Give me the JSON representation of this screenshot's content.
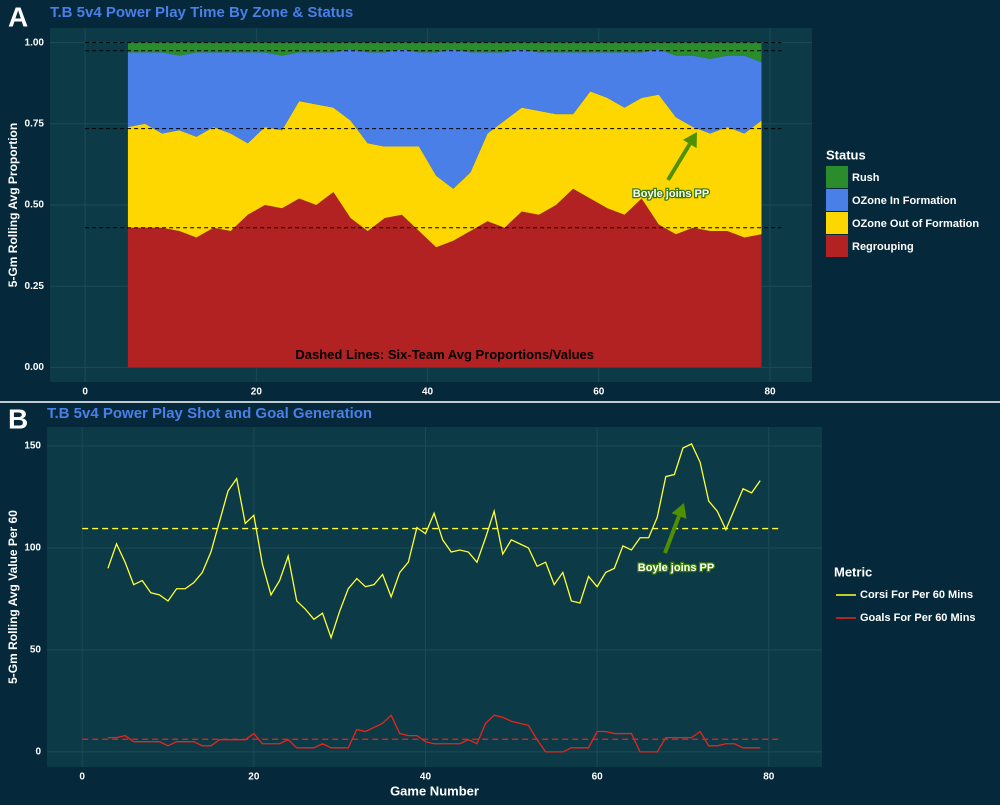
{
  "chart_data": [
    {
      "type": "area",
      "panel": "A",
      "title": "T.B  5v4 Power Play Time By Zone & Status",
      "ylabel": "5-Gm Rolling Avg Proportion",
      "legend_title": "Status",
      "note": "Dashed Lines: Six-Team Avg Proportions/Values",
      "annotation": "Boyle joins PP",
      "xlim": [
        -4.1,
        84.9
      ],
      "ylim": [
        -0.045,
        1.045
      ],
      "xticks": [
        0,
        20,
        40,
        60,
        80
      ],
      "yticks": [
        {
          "value": 0,
          "label": "0.00"
        },
        {
          "value": 0.25,
          "label": "0.25"
        },
        {
          "value": 0.5,
          "label": "0.50"
        },
        {
          "value": 0.75,
          "label": "0.75"
        },
        {
          "value": 1,
          "label": "1.00"
        }
      ],
      "grid": true,
      "x": [
        5,
        7,
        9,
        11,
        13,
        15,
        17,
        19,
        21,
        23,
        25,
        27,
        29,
        31,
        33,
        35,
        37,
        39,
        41,
        43,
        45,
        47,
        49,
        51,
        53,
        55,
        57,
        59,
        61,
        63,
        65,
        67,
        69,
        71,
        73,
        75,
        77,
        79
      ],
      "series": [
        {
          "name": "Rush",
          "color": "#2b8c2b",
          "average": 0.025,
          "values": [
            0.03,
            0.03,
            0.03,
            0.04,
            0.03,
            0.03,
            0.03,
            0.03,
            0.03,
            0.04,
            0.03,
            0.03,
            0.03,
            0.02,
            0.03,
            0.03,
            0.02,
            0.03,
            0.03,
            0.02,
            0.03,
            0.03,
            0.03,
            0.02,
            0.03,
            0.03,
            0.03,
            0.03,
            0.03,
            0.03,
            0.03,
            0.02,
            0.04,
            0.04,
            0.05,
            0.04,
            0.04,
            0.06
          ]
        },
        {
          "name": "OZone In Formation",
          "color": "#4a7fe8",
          "average": 0.24,
          "values": [
            0.23,
            0.22,
            0.25,
            0.23,
            0.26,
            0.23,
            0.25,
            0.28,
            0.23,
            0.23,
            0.15,
            0.16,
            0.17,
            0.22,
            0.28,
            0.29,
            0.3,
            0.29,
            0.38,
            0.43,
            0.37,
            0.25,
            0.21,
            0.18,
            0.18,
            0.19,
            0.19,
            0.12,
            0.14,
            0.17,
            0.14,
            0.14,
            0.19,
            0.22,
            0.23,
            0.22,
            0.24,
            0.18
          ]
        },
        {
          "name": "OZone Out of Formation",
          "color": "#ffd700",
          "average": 0.305,
          "values": [
            0.31,
            0.32,
            0.29,
            0.31,
            0.31,
            0.31,
            0.3,
            0.22,
            0.24,
            0.24,
            0.3,
            0.31,
            0.26,
            0.3,
            0.27,
            0.22,
            0.21,
            0.26,
            0.22,
            0.16,
            0.18,
            0.27,
            0.33,
            0.32,
            0.32,
            0.28,
            0.23,
            0.33,
            0.34,
            0.33,
            0.31,
            0.4,
            0.36,
            0.31,
            0.3,
            0.32,
            0.32,
            0.35
          ]
        },
        {
          "name": "Regrouping",
          "color": "#b22222",
          "average": 0.43,
          "values": [
            0.43,
            0.43,
            0.43,
            0.42,
            0.4,
            0.43,
            0.42,
            0.47,
            0.5,
            0.49,
            0.52,
            0.5,
            0.54,
            0.46,
            0.42,
            0.46,
            0.47,
            0.42,
            0.37,
            0.39,
            0.42,
            0.45,
            0.43,
            0.48,
            0.47,
            0.5,
            0.55,
            0.52,
            0.49,
            0.47,
            0.52,
            0.44,
            0.41,
            0.43,
            0.42,
            0.42,
            0.4,
            0.41
          ]
        }
      ]
    },
    {
      "type": "line",
      "panel": "B",
      "title": "T.B  5v4 Power Play Shot and Goal Generation",
      "ylabel": "5-Gm Rolling Avg Value Per 60",
      "xlabel": "Game Number",
      "legend_title": "Metric",
      "annotation": "Boyle joins PP",
      "xlim": [
        -4.1,
        86.2
      ],
      "ylim": [
        -7.4,
        159.3
      ],
      "xticks": [
        0,
        20,
        40,
        60,
        80
      ],
      "yticks": [
        0,
        50,
        100,
        150
      ],
      "grid": true,
      "x": [
        3,
        4,
        5,
        6,
        7,
        8,
        9,
        10,
        11,
        12,
        13,
        14,
        15,
        16,
        17,
        18,
        19,
        20,
        21,
        22,
        23,
        24,
        25,
        26,
        27,
        28,
        29,
        30,
        31,
        32,
        33,
        34,
        35,
        36,
        37,
        38,
        39,
        40,
        41,
        42,
        43,
        44,
        45,
        46,
        47,
        48,
        49,
        50,
        51,
        52,
        53,
        54,
        55,
        56,
        57,
        58,
        59,
        60,
        61,
        62,
        63,
        64,
        65,
        66,
        67,
        68,
        69,
        70,
        71,
        72,
        73,
        74,
        75,
        76,
        77,
        78,
        79
      ],
      "series": [
        {
          "name": "Corsi For Per 60 Mins",
          "color": "#ffff33",
          "average": 109.5,
          "values": [
            90,
            102,
            93,
            82,
            84,
            78,
            77,
            74,
            80,
            80,
            83,
            88,
            98,
            113,
            128,
            134,
            112,
            116,
            92,
            77,
            84,
            96,
            74,
            70,
            65,
            68,
            56,
            69,
            80,
            85,
            81,
            82,
            87,
            76,
            88,
            93,
            110,
            107,
            117,
            104,
            98,
            99,
            98,
            93,
            105,
            118,
            97,
            104,
            102,
            100,
            91,
            93,
            82,
            88,
            74,
            73,
            86,
            81,
            88,
            90,
            101,
            99,
            105,
            105,
            115,
            135,
            136,
            149,
            151,
            142,
            123,
            118,
            109,
            119,
            129,
            127,
            133
          ]
        },
        {
          "name": "Goals For Per 60 Mins",
          "color": "#e8251b",
          "average": 6.2,
          "values": [
            7,
            7,
            8,
            5,
            5,
            5,
            5,
            3,
            5,
            5,
            5,
            3,
            3,
            6,
            6,
            6,
            6,
            9,
            4,
            4,
            4,
            6,
            2,
            2,
            2,
            4,
            2,
            2,
            2,
            11,
            10,
            12,
            14,
            18,
            9,
            8,
            8,
            5,
            4,
            4,
            4,
            4,
            6,
            4,
            14,
            18,
            17,
            15,
            14,
            13,
            6,
            0,
            0,
            0,
            2,
            2,
            2,
            10,
            10,
            9,
            9,
            9,
            0,
            0,
            0,
            7,
            7,
            7,
            7,
            10,
            3,
            3,
            4,
            4,
            2,
            2,
            2
          ]
        }
      ]
    }
  ]
}
